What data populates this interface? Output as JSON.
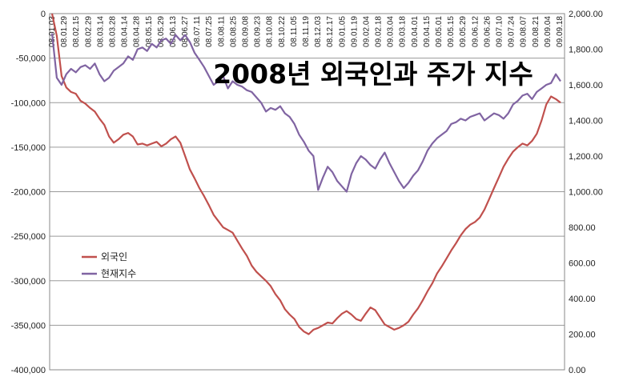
{
  "chart_data": {
    "type": "line",
    "title": "2008년 외국인과 주가 지수",
    "xlabel": "",
    "ylabel": "",
    "y_left": {
      "lim": [
        -400000,
        0
      ],
      "ticks": [
        0,
        -50000,
        -100000,
        -150000,
        -200000,
        -250000,
        -300000,
        -350000,
        -400000
      ],
      "tick_labels": [
        "0",
        "-50,000",
        "-100,000",
        "-150,000",
        "-200,000",
        "-250,000",
        "-300,000",
        "-350,000",
        "-400,000"
      ]
    },
    "y_right": {
      "lim": [
        0,
        2000
      ],
      "ticks": [
        2000,
        1800,
        1600,
        1400,
        1200,
        1000,
        800,
        600,
        400,
        200,
        0
      ],
      "tick_labels": [
        "2,000.00",
        "1,800.00",
        "1,600.00",
        "1,400.00",
        "1,200.00",
        "1,000.00",
        "800.00",
        "600.00",
        "400.00",
        "200.00",
        "0.00"
      ]
    },
    "x_tick_labels": [
      "08.01.03",
      "08.01.29",
      "08.02.15",
      "08.02.29",
      "08.03.14",
      "08.03.28",
      "08.04.14",
      "08.04.28",
      "08.05.15",
      "08.05.29",
      "08.06.13",
      "08.06.27",
      "08.07.11",
      "08.07.25",
      "08.08.11",
      "08.08.25",
      "08.09.08",
      "08.09.23",
      "08.10.08",
      "08.10.22",
      "08.11.05",
      "08.11.19",
      "08.12.03",
      "08.12.17",
      "09.01.05",
      "09.01.19",
      "09.02.04",
      "09.02.18",
      "09.03.04",
      "09.03.18",
      "09.04.01",
      "09.04.15",
      "09.05.01",
      "09.05.15",
      "09.05.29",
      "09.06.12",
      "09.06.26",
      "09.07.10",
      "09.07.24",
      "09.08.07",
      "09.08.21",
      "09.09.04",
      "09.09.18"
    ],
    "grid": "horizontal",
    "legend_position": "lower-left",
    "series": [
      {
        "name": "외국인",
        "axis": "left",
        "color": "#c0504d",
        "values": [
          0,
          -25000,
          -70000,
          -83000,
          -88000,
          -90000,
          -98000,
          -101000,
          -106000,
          -110000,
          -118000,
          -125000,
          -138000,
          -145000,
          -141000,
          -136000,
          -134000,
          -138000,
          -147000,
          -146000,
          -148000,
          -146000,
          -144000,
          -149000,
          -146000,
          -141000,
          -138000,
          -145000,
          -160000,
          -175000,
          -185000,
          -196000,
          -205000,
          -215000,
          -226000,
          -233000,
          -240000,
          -243000,
          -246000,
          -255000,
          -264000,
          -272000,
          -283000,
          -290000,
          -295000,
          -300000,
          -306000,
          -315000,
          -322000,
          -332000,
          -338000,
          -343000,
          -352000,
          -357000,
          -360000,
          -355000,
          -353000,
          -350000,
          -347000,
          -348000,
          -342000,
          -337000,
          -334000,
          -338000,
          -343000,
          -345000,
          -337000,
          -330000,
          -333000,
          -341000,
          -349000,
          -352000,
          -355000,
          -353000,
          -350000,
          -346000,
          -338000,
          -331000,
          -322000,
          -312000,
          -303000,
          -292000,
          -284000,
          -275000,
          -266000,
          -258000,
          -249000,
          -242000,
          -237000,
          -234000,
          -229000,
          -220000,
          -208000,
          -196000,
          -184000,
          -172000,
          -163000,
          -155000,
          -150000,
          -146000,
          -148000,
          -143000,
          -135000,
          -120000,
          -102000,
          -93000,
          -96000,
          -100000
        ]
      },
      {
        "name": "현재지수",
        "axis": "right",
        "color": "#8064a2",
        "values": [
          1890,
          1640,
          1600,
          1660,
          1690,
          1670,
          1700,
          1710,
          1690,
          1720,
          1660,
          1620,
          1640,
          1680,
          1700,
          1720,
          1760,
          1740,
          1800,
          1810,
          1790,
          1830,
          1810,
          1850,
          1860,
          1830,
          1880,
          1850,
          1880,
          1840,
          1780,
          1740,
          1700,
          1650,
          1600,
          1620,
          1650,
          1580,
          1620,
          1600,
          1590,
          1570,
          1560,
          1530,
          1500,
          1450,
          1470,
          1460,
          1480,
          1440,
          1420,
          1380,
          1320,
          1280,
          1230,
          1200,
          1010,
          1080,
          1140,
          1110,
          1060,
          1030,
          1000,
          1100,
          1160,
          1200,
          1180,
          1150,
          1130,
          1180,
          1220,
          1160,
          1110,
          1060,
          1020,
          1050,
          1090,
          1120,
          1170,
          1230,
          1270,
          1300,
          1320,
          1340,
          1380,
          1390,
          1410,
          1400,
          1420,
          1430,
          1440,
          1400,
          1420,
          1440,
          1430,
          1410,
          1440,
          1490,
          1510,
          1540,
          1550,
          1520,
          1560,
          1580,
          1600,
          1610,
          1660,
          1620
        ]
      }
    ]
  }
}
